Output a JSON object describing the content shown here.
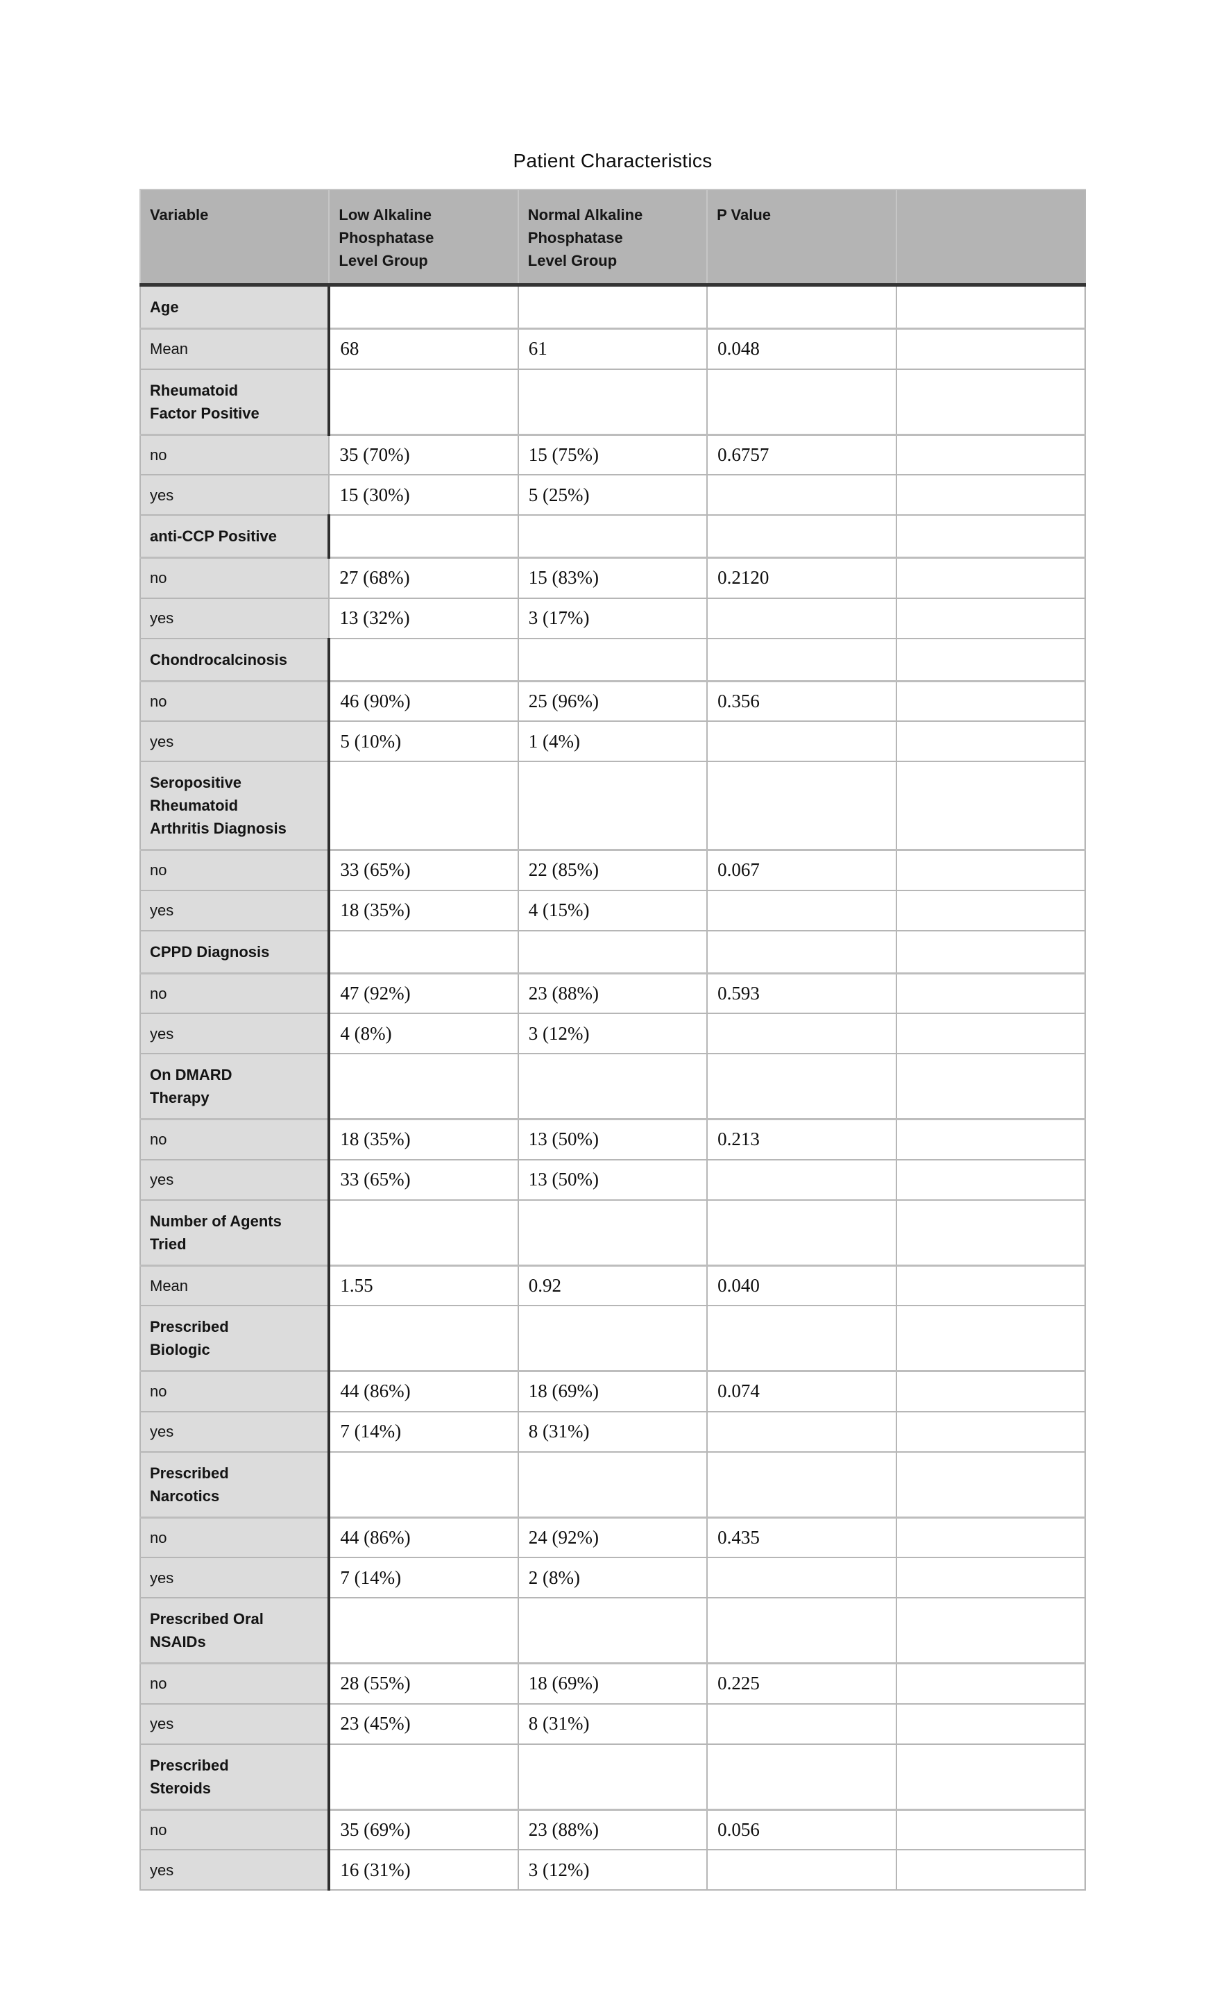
{
  "title": "Patient Characteristics",
  "colors": {
    "header_bg": "#b4b4b4",
    "label_column_bg": "#dcdcdc",
    "grid_light": "#b6b6b6",
    "grid_dark": "#343434",
    "text": "#141414",
    "paper": "#ffffff"
  },
  "table": {
    "headers": [
      "Variable",
      "Low Alkaline\nPhosphatase\nLevel Group",
      "Normal Alkaline\nPhosphatase\nLevel Group",
      "P Value",
      ""
    ],
    "rows": [
      {
        "type": "category",
        "label": "Age"
      },
      {
        "type": "data",
        "label": "Mean",
        "low": "68",
        "normal": "61",
        "p": "0.048"
      },
      {
        "type": "category",
        "label": "Rheumatoid\nFactor Positive"
      },
      {
        "type": "data",
        "label": "no",
        "low": "35 (70%)",
        "normal": "15 (75%)",
        "p": "0.6757",
        "light_divider": true
      },
      {
        "type": "data",
        "label": "yes",
        "low": "15 (30%)",
        "normal": "5 (25%)",
        "p": "",
        "light_divider": true
      },
      {
        "type": "category",
        "label": "anti-CCP Positive"
      },
      {
        "type": "data",
        "label": "no",
        "low": "27 (68%)",
        "normal": "15 (83%)",
        "p": "0.2120",
        "light_divider": true
      },
      {
        "type": "data",
        "label": "yes",
        "low": "13 (32%)",
        "normal": "3 (17%)",
        "p": "",
        "light_divider": true
      },
      {
        "type": "category",
        "label": "Chondrocalcinosis"
      },
      {
        "type": "data",
        "label": "no",
        "low": "46 (90%)",
        "normal": "25 (96%)",
        "p": "0.356"
      },
      {
        "type": "data",
        "label": "yes",
        "low": "5 (10%)",
        "normal": "1 (4%)",
        "p": ""
      },
      {
        "type": "category",
        "label": "Seropositive\nRheumatoid\nArthritis Diagnosis"
      },
      {
        "type": "data",
        "label": "no",
        "low": "33 (65%)",
        "normal": "22 (85%)",
        "p": "0.067"
      },
      {
        "type": "data",
        "label": "yes",
        "low": "18 (35%)",
        "normal": "4 (15%)",
        "p": ""
      },
      {
        "type": "category",
        "label": "CPPD Diagnosis"
      },
      {
        "type": "data",
        "label": "no",
        "low": "47 (92%)",
        "normal": "23 (88%)",
        "p": "0.593"
      },
      {
        "type": "data",
        "label": "yes",
        "low": "4 (8%)",
        "normal": "3 (12%)",
        "p": ""
      },
      {
        "type": "category",
        "label": "On DMARD\nTherapy"
      },
      {
        "type": "data",
        "label": "no",
        "low": "18 (35%)",
        "normal": "13 (50%)",
        "p": "0.213"
      },
      {
        "type": "data",
        "label": "yes",
        "low": "33 (65%)",
        "normal": "13 (50%)",
        "p": ""
      },
      {
        "type": "category",
        "label": "Number of Agents\nTried"
      },
      {
        "type": "data",
        "label": "Mean",
        "low": "1.55",
        "normal": "0.92",
        "p": "0.040"
      },
      {
        "type": "category",
        "label": "Prescribed\nBiologic"
      },
      {
        "type": "data",
        "label": "no",
        "low": "44 (86%)",
        "normal": "18 (69%)",
        "p": "0.074"
      },
      {
        "type": "data",
        "label": "yes",
        "low": "7 (14%)",
        "normal": "8 (31%)",
        "p": ""
      },
      {
        "type": "category",
        "label": "Prescribed\nNarcotics"
      },
      {
        "type": "data",
        "label": "no",
        "low": "44 (86%)",
        "normal": "24 (92%)",
        "p": "0.435"
      },
      {
        "type": "data",
        "label": "yes",
        "low": "7 (14%)",
        "normal": "2 (8%)",
        "p": ""
      },
      {
        "type": "category",
        "label": "Prescribed Oral\nNSAIDs"
      },
      {
        "type": "data",
        "label": "no",
        "low": "28 (55%)",
        "normal": "18 (69%)",
        "p": "0.225"
      },
      {
        "type": "data",
        "label": "yes",
        "low": "23 (45%)",
        "normal": "8 (31%)",
        "p": ""
      },
      {
        "type": "category",
        "label": "Prescribed\nSteroids"
      },
      {
        "type": "data",
        "label": "no",
        "low": "35 (69%)",
        "normal": "23 (88%)",
        "p": "0.056"
      },
      {
        "type": "data",
        "label": "yes",
        "low": "16 (31%)",
        "normal": "3 (12%)",
        "p": ""
      }
    ]
  }
}
